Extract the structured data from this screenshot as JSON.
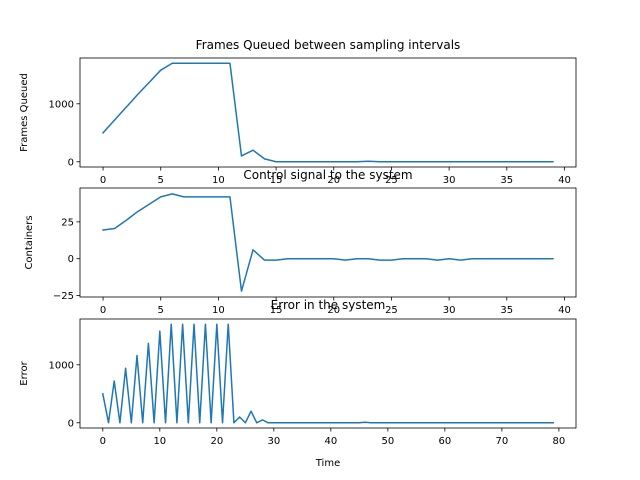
{
  "chart_data": [
    {
      "type": "line",
      "title": "Frames Queued between sampling intervals",
      "xlabel": "",
      "ylabel": "Frames Queued",
      "xlim": [
        -2,
        41
      ],
      "ylim": [
        -90,
        1790
      ],
      "xticks": [
        0,
        5,
        10,
        15,
        20,
        25,
        30,
        35,
        40
      ],
      "yticks": [
        0,
        1000
      ],
      "series": [
        {
          "x": [
            0,
            1,
            2,
            3,
            4,
            5,
            6,
            7,
            8,
            9,
            10,
            11,
            12,
            13,
            14,
            15,
            16,
            17,
            18,
            19,
            20,
            21,
            22,
            23,
            24,
            25,
            26,
            27,
            28,
            29,
            30,
            31,
            32,
            33,
            34,
            35,
            36,
            37,
            38,
            39
          ],
          "y": [
            500,
            720,
            940,
            1160,
            1370,
            1580,
            1700,
            1700,
            1700,
            1700,
            1700,
            1700,
            100,
            200,
            50,
            0,
            0,
            0,
            0,
            0,
            0,
            0,
            0,
            10,
            0,
            0,
            0,
            0,
            0,
            0,
            0,
            0,
            0,
            0,
            0,
            0,
            0,
            0,
            0,
            0
          ]
        }
      ]
    },
    {
      "type": "line",
      "title": "Control signal to the system",
      "xlabel": "",
      "ylabel": "Containers",
      "xlim": [
        -2,
        41
      ],
      "ylim": [
        -26,
        48
      ],
      "xticks": [
        0,
        5,
        10,
        15,
        20,
        25,
        30,
        35,
        40
      ],
      "yticks": [
        -25,
        0,
        25
      ],
      "series": [
        {
          "x": [
            0,
            1,
            2,
            3,
            4,
            5,
            6,
            7,
            8,
            9,
            10,
            11,
            12,
            13,
            14,
            15,
            16,
            17,
            18,
            19,
            20,
            21,
            22,
            23,
            24,
            25,
            26,
            27,
            28,
            29,
            30,
            31,
            32,
            33,
            34,
            35,
            36,
            37,
            38,
            39
          ],
          "y": [
            19.5,
            20.5,
            26,
            32,
            37,
            42,
            44,
            42,
            42,
            42,
            42,
            42,
            -22,
            6,
            -1,
            -1,
            0,
            0,
            0,
            0,
            0,
            -1,
            0,
            0,
            -1,
            -1,
            0,
            0,
            0,
            -1,
            0,
            -1,
            0,
            0,
            0,
            0,
            0,
            0,
            0,
            0
          ]
        }
      ]
    },
    {
      "type": "line",
      "title": "Error in the system",
      "xlabel": "Time",
      "ylabel": "Error",
      "xlim": [
        -4,
        83
      ],
      "ylim": [
        -90,
        1790
      ],
      "xticks": [
        0,
        10,
        20,
        30,
        40,
        50,
        60,
        70,
        80
      ],
      "yticks": [
        0,
        1000
      ],
      "series": [
        {
          "x": [
            0,
            1,
            2,
            3,
            4,
            5,
            6,
            7,
            8,
            9,
            10,
            11,
            12,
            13,
            14,
            15,
            16,
            17,
            18,
            19,
            20,
            21,
            22,
            23,
            24,
            25,
            26,
            27,
            28,
            29,
            30,
            31,
            32,
            33,
            34,
            35,
            36,
            37,
            38,
            39,
            40,
            41,
            42,
            43,
            44,
            45,
            46,
            47,
            48,
            49,
            50,
            51,
            52,
            53,
            54,
            55,
            56,
            57,
            58,
            59,
            60,
            61,
            62,
            63,
            64,
            65,
            66,
            67,
            68,
            69,
            70,
            71,
            72,
            73,
            74,
            75,
            76,
            77,
            78,
            79
          ],
          "y": [
            500,
            0,
            720,
            0,
            940,
            0,
            1160,
            0,
            1370,
            0,
            1580,
            0,
            1700,
            0,
            1700,
            0,
            1700,
            0,
            1700,
            0,
            1700,
            0,
            1700,
            0,
            100,
            0,
            200,
            0,
            50,
            0,
            0,
            0,
            0,
            0,
            0,
            0,
            0,
            0,
            0,
            0,
            0,
            0,
            0,
            0,
            0,
            0,
            10,
            0,
            0,
            0,
            0,
            0,
            0,
            0,
            0,
            0,
            0,
            0,
            0,
            0,
            0,
            0,
            0,
            0,
            0,
            0,
            0,
            0,
            0,
            0,
            0,
            0,
            0,
            0,
            0,
            0,
            0,
            0,
            0,
            0
          ]
        }
      ]
    }
  ]
}
